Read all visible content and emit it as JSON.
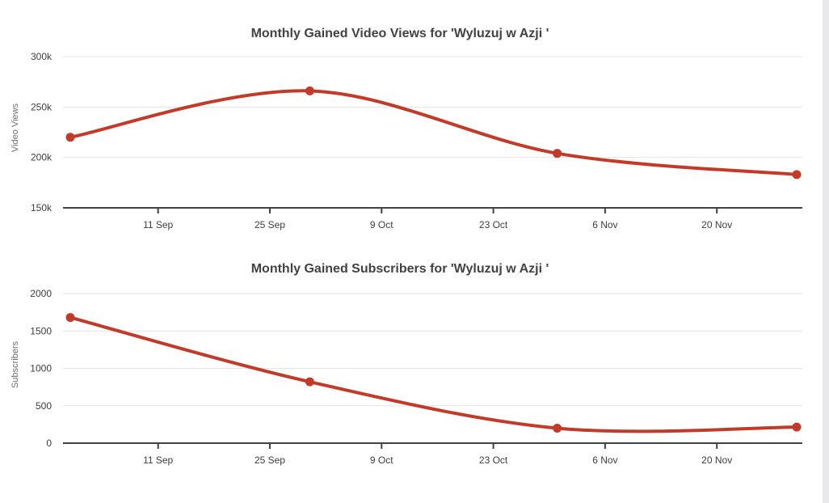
{
  "page": {
    "background": "#ffffff",
    "scrollbar_color": "#e9e9ec",
    "accent_color": "#c43a28"
  },
  "chart_data": [
    {
      "type": "line",
      "title": "Monthly Gained Video Views for 'Wyluzuj w Azji '",
      "xlabel": "",
      "ylabel": "Video Views",
      "x": [
        "31 Aug",
        "30 Sep",
        "31 Oct",
        "30 Nov"
      ],
      "x_days": [
        0,
        30,
        61,
        91
      ],
      "series": [
        {
          "name": "Video Views",
          "values": [
            220000,
            266000,
            204000,
            183000
          ]
        }
      ],
      "ylim": [
        150000,
        300000
      ],
      "y_ticks": [
        {
          "value": 150000,
          "label": "150k"
        },
        {
          "value": 200000,
          "label": "200k"
        },
        {
          "value": 250000,
          "label": "250k"
        },
        {
          "value": 300000,
          "label": "300k"
        }
      ],
      "x_ticks": [
        {
          "day": 11,
          "label": "11 Sep"
        },
        {
          "day": 25,
          "label": "25 Sep"
        },
        {
          "day": 39,
          "label": "9 Oct"
        },
        {
          "day": 53,
          "label": "23 Oct"
        },
        {
          "day": 67,
          "label": "6 Nov"
        },
        {
          "day": 81,
          "label": "20 Nov"
        }
      ],
      "grid": true,
      "legend": "none",
      "line_color": "#c43a28"
    },
    {
      "type": "line",
      "title": "Monthly Gained Subscribers for 'Wyluzuj w Azji '",
      "xlabel": "",
      "ylabel": "Subscribers",
      "x": [
        "31 Aug",
        "30 Sep",
        "31 Oct",
        "30 Nov"
      ],
      "x_days": [
        0,
        30,
        61,
        91
      ],
      "series": [
        {
          "name": "Subscribers",
          "values": [
            1680,
            820,
            200,
            215
          ]
        }
      ],
      "ylim": [
        0,
        2000
      ],
      "y_ticks": [
        {
          "value": 0,
          "label": "0"
        },
        {
          "value": 500,
          "label": "500"
        },
        {
          "value": 1000,
          "label": "1000"
        },
        {
          "value": 1500,
          "label": "1500"
        },
        {
          "value": 2000,
          "label": "2000"
        }
      ],
      "x_ticks": [
        {
          "day": 11,
          "label": "11 Sep"
        },
        {
          "day": 25,
          "label": "25 Sep"
        },
        {
          "day": 39,
          "label": "9 Oct"
        },
        {
          "day": 53,
          "label": "23 Oct"
        },
        {
          "day": 67,
          "label": "6 Nov"
        },
        {
          "day": 81,
          "label": "20 Nov"
        }
      ],
      "grid": true,
      "legend": "none",
      "line_color": "#c43a28"
    }
  ]
}
